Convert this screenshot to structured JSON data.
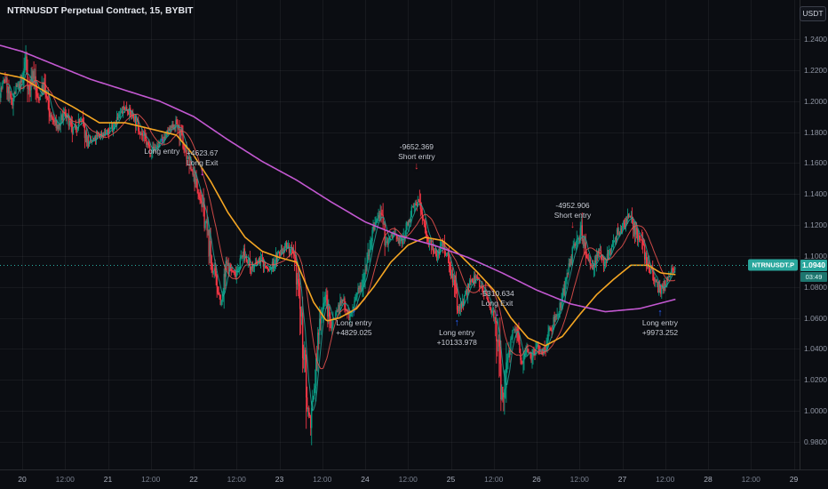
{
  "legend": {
    "title": "NTRNUSDT Perpetual Contract, 15, BYBIT"
  },
  "toolbar": {
    "currency_label": "USDT"
  },
  "price_tag": {
    "symbol": "NTRNUSDT.P",
    "last_price": "1.0940",
    "countdown": "03:49"
  },
  "axis": {
    "price_labels": [
      "1.2400",
      "1.2200",
      "1.2000",
      "1.1800",
      "1.1600",
      "1.1400",
      "1.1200",
      "1.1000",
      "1.0800",
      "1.0600",
      "1.0400",
      "1.0200",
      "1.0000",
      "0.9800"
    ],
    "time_ticks": [
      {
        "label": "20",
        "day": 20,
        "major": true
      },
      {
        "label": "12:00",
        "day": 20.5,
        "major": false
      },
      {
        "label": "21",
        "day": 21,
        "major": true
      },
      {
        "label": "12:00",
        "day": 21.5,
        "major": false
      },
      {
        "label": "22",
        "day": 22,
        "major": true
      },
      {
        "label": "12:00",
        "day": 22.5,
        "major": false
      },
      {
        "label": "23",
        "day": 23,
        "major": true
      },
      {
        "label": "12:00",
        "day": 23.5,
        "major": false
      },
      {
        "label": "24",
        "day": 24,
        "major": true
      },
      {
        "label": "12:00",
        "day": 24.5,
        "major": false
      },
      {
        "label": "25",
        "day": 25,
        "major": true
      },
      {
        "label": "12:00",
        "day": 25.5,
        "major": false
      },
      {
        "label": "26",
        "day": 26,
        "major": true
      },
      {
        "label": "12:00",
        "day": 26.5,
        "major": false
      },
      {
        "label": "27",
        "day": 27,
        "major": true
      },
      {
        "label": "12:00",
        "day": 27.5,
        "major": false
      },
      {
        "label": "28",
        "day": 28,
        "major": true
      },
      {
        "label": "12:00",
        "day": 28.5,
        "major": false
      },
      {
        "label": "29",
        "day": 29,
        "major": true
      }
    ]
  },
  "chart_data": {
    "type": "candlestick",
    "title": "NTRNUSDT Perpetual Contract, 15, BYBIT",
    "interval_minutes": 15,
    "exchange": "BYBIT",
    "last_price": 1.094,
    "countdown": "03:49",
    "ylim": [
      0.98,
      1.24
    ],
    "x_visible_days": [
      19.74,
      29
    ],
    "grid": true,
    "price_path": [
      [
        19.74,
        1.205
      ],
      [
        19.8,
        1.215
      ],
      [
        19.87,
        1.198
      ],
      [
        19.93,
        1.208
      ],
      [
        20.0,
        1.212
      ],
      [
        20.04,
        1.228
      ],
      [
        20.08,
        1.205
      ],
      [
        20.13,
        1.22
      ],
      [
        20.18,
        1.2
      ],
      [
        20.25,
        1.21
      ],
      [
        20.33,
        1.19
      ],
      [
        20.42,
        1.183
      ],
      [
        20.5,
        1.193
      ],
      [
        20.58,
        1.18
      ],
      [
        20.68,
        1.188
      ],
      [
        20.78,
        1.172
      ],
      [
        20.9,
        1.178
      ],
      [
        21.0,
        1.18
      ],
      [
        21.1,
        1.188
      ],
      [
        21.2,
        1.196
      ],
      [
        21.3,
        1.19
      ],
      [
        21.4,
        1.178
      ],
      [
        21.5,
        1.168
      ],
      [
        21.6,
        1.172
      ],
      [
        21.7,
        1.18
      ],
      [
        21.8,
        1.186
      ],
      [
        21.9,
        1.168
      ],
      [
        22.0,
        1.152
      ],
      [
        22.08,
        1.138
      ],
      [
        22.15,
        1.118
      ],
      [
        22.22,
        1.092
      ],
      [
        22.3,
        1.075
      ],
      [
        22.33,
        1.068
      ],
      [
        22.38,
        1.095
      ],
      [
        22.48,
        1.088
      ],
      [
        22.58,
        1.102
      ],
      [
        22.68,
        1.092
      ],
      [
        22.78,
        1.098
      ],
      [
        22.88,
        1.09
      ],
      [
        22.98,
        1.1
      ],
      [
        23.08,
        1.108
      ],
      [
        23.15,
        1.1
      ],
      [
        23.22,
        1.082
      ],
      [
        23.28,
        1.04
      ],
      [
        23.33,
        1.002
      ],
      [
        23.37,
        0.992
      ],
      [
        23.42,
        1.022
      ],
      [
        23.47,
        1.058
      ],
      [
        23.53,
        1.075
      ],
      [
        23.6,
        1.055
      ],
      [
        23.67,
        1.065
      ],
      [
        23.75,
        1.072
      ],
      [
        23.82,
        1.06
      ],
      [
        23.88,
        1.07
      ],
      [
        23.95,
        1.082
      ],
      [
        24.02,
        1.098
      ],
      [
        24.1,
        1.118
      ],
      [
        24.17,
        1.127
      ],
      [
        24.25,
        1.108
      ],
      [
        24.33,
        1.115
      ],
      [
        24.42,
        1.108
      ],
      [
        24.5,
        1.122
      ],
      [
        24.57,
        1.132
      ],
      [
        24.62,
        1.136
      ],
      [
        24.68,
        1.122
      ],
      [
        24.75,
        1.108
      ],
      [
        24.83,
        1.1
      ],
      [
        24.9,
        1.108
      ],
      [
        24.97,
        1.1
      ],
      [
        25.03,
        1.082
      ],
      [
        25.08,
        1.065
      ],
      [
        25.15,
        1.072
      ],
      [
        25.22,
        1.082
      ],
      [
        25.3,
        1.086
      ],
      [
        25.38,
        1.078
      ],
      [
        25.45,
        1.068
      ],
      [
        25.52,
        1.06
      ],
      [
        25.57,
        1.022
      ],
      [
        25.61,
        1.005
      ],
      [
        25.65,
        1.03
      ],
      [
        25.7,
        1.048
      ],
      [
        25.76,
        1.052
      ],
      [
        25.82,
        1.032
      ],
      [
        25.88,
        1.042
      ],
      [
        25.94,
        1.035
      ],
      [
        26.0,
        1.042
      ],
      [
        26.08,
        1.038
      ],
      [
        26.15,
        1.052
      ],
      [
        26.22,
        1.06
      ],
      [
        26.3,
        1.072
      ],
      [
        26.38,
        1.092
      ],
      [
        26.45,
        1.108
      ],
      [
        26.52,
        1.116
      ],
      [
        26.58,
        1.102
      ],
      [
        26.65,
        1.092
      ],
      [
        26.72,
        1.102
      ],
      [
        26.8,
        1.095
      ],
      [
        26.88,
        1.108
      ],
      [
        26.95,
        1.115
      ],
      [
        27.02,
        1.12
      ],
      [
        27.08,
        1.127
      ],
      [
        27.15,
        1.117
      ],
      [
        27.22,
        1.108
      ],
      [
        27.3,
        1.095
      ],
      [
        27.38,
        1.083
      ],
      [
        27.45,
        1.077
      ],
      [
        27.5,
        1.082
      ],
      [
        27.55,
        1.088
      ],
      [
        27.62,
        1.094
      ]
    ],
    "ma_fast_orange": [
      [
        19.74,
        1.218
      ],
      [
        20.0,
        1.215
      ],
      [
        20.3,
        1.205
      ],
      [
        20.6,
        1.196
      ],
      [
        20.9,
        1.186
      ],
      [
        21.2,
        1.186
      ],
      [
        21.5,
        1.182
      ],
      [
        21.8,
        1.178
      ],
      [
        22.0,
        1.165
      ],
      [
        22.2,
        1.148
      ],
      [
        22.4,
        1.128
      ],
      [
        22.6,
        1.112
      ],
      [
        22.8,
        1.103
      ],
      [
        23.0,
        1.099
      ],
      [
        23.2,
        1.096
      ],
      [
        23.4,
        1.07
      ],
      [
        23.55,
        1.058
      ],
      [
        23.7,
        1.06
      ],
      [
        23.9,
        1.066
      ],
      [
        24.1,
        1.08
      ],
      [
        24.3,
        1.096
      ],
      [
        24.5,
        1.107
      ],
      [
        24.7,
        1.112
      ],
      [
        24.9,
        1.11
      ],
      [
        25.1,
        1.101
      ],
      [
        25.3,
        1.09
      ],
      [
        25.5,
        1.078
      ],
      [
        25.7,
        1.06
      ],
      [
        25.9,
        1.047
      ],
      [
        26.1,
        1.042
      ],
      [
        26.3,
        1.048
      ],
      [
        26.5,
        1.062
      ],
      [
        26.7,
        1.075
      ],
      [
        26.9,
        1.085
      ],
      [
        27.1,
        1.094
      ],
      [
        27.3,
        1.094
      ],
      [
        27.45,
        1.089
      ],
      [
        27.62,
        1.088
      ]
    ],
    "ma_slow_purple": [
      [
        19.74,
        1.236
      ],
      [
        20.0,
        1.232
      ],
      [
        20.4,
        1.223
      ],
      [
        20.8,
        1.214
      ],
      [
        21.2,
        1.207
      ],
      [
        21.6,
        1.2
      ],
      [
        22.0,
        1.19
      ],
      [
        22.4,
        1.175
      ],
      [
        22.8,
        1.161
      ],
      [
        23.2,
        1.149
      ],
      [
        23.6,
        1.135
      ],
      [
        24.0,
        1.122
      ],
      [
        24.4,
        1.113
      ],
      [
        24.8,
        1.107
      ],
      [
        25.2,
        1.099
      ],
      [
        25.6,
        1.089
      ],
      [
        26.0,
        1.078
      ],
      [
        26.4,
        1.069
      ],
      [
        26.8,
        1.064
      ],
      [
        27.2,
        1.066
      ],
      [
        27.62,
        1.072
      ]
    ],
    "annotations": [
      {
        "day": 21.63,
        "price": 1.177,
        "arrow": "up",
        "color": "#2962ff",
        "text_side": "below",
        "lines": [
          "Long entry"
        ]
      },
      {
        "day": 22.1,
        "price": 1.138,
        "arrow": "down",
        "color": "#e040fb",
        "text_side": "above",
        "lines": [
          "+4623.67",
          "Long Exit"
        ]
      },
      {
        "day": 23.87,
        "price": 1.066,
        "arrow": "up",
        "color": "#2962ff",
        "text_side": "below",
        "lines": [
          "Long entry",
          "+4829.025"
        ]
      },
      {
        "day": 24.6,
        "price": 1.142,
        "arrow": "down",
        "color": "#f23645",
        "text_side": "above",
        "lines": [
          "-9652.369",
          "Short entry"
        ]
      },
      {
        "day": 25.07,
        "price": 1.06,
        "arrow": "up",
        "color": "#2962ff",
        "text_side": "below",
        "lines": [
          "Long entry",
          "+10133.978"
        ]
      },
      {
        "day": 25.54,
        "price": 1.047,
        "arrow": "down",
        "color": "#e040fb",
        "text_side": "above",
        "lines": [
          "-5310.634",
          "Long Exit"
        ]
      },
      {
        "day": 26.42,
        "price": 1.104,
        "arrow": "down",
        "color": "#f23645",
        "text_side": "above",
        "lines": [
          "-4952.906",
          "Short entry"
        ]
      },
      {
        "day": 27.44,
        "price": 1.066,
        "arrow": "up",
        "color": "#2962ff",
        "text_side": "below",
        "lines": [
          "Long entry",
          "+9973.252"
        ]
      }
    ],
    "colors": {
      "up": "#089981",
      "down": "#f23645",
      "ma_fast": "#f5a623",
      "ma_slow": "#c358d1",
      "ema_short": "#26a69a",
      "ema_mid": "#ef5350",
      "last_price_line": "#2ab0a6",
      "accent": "#2aa79d",
      "background": "#0b0d12"
    }
  }
}
